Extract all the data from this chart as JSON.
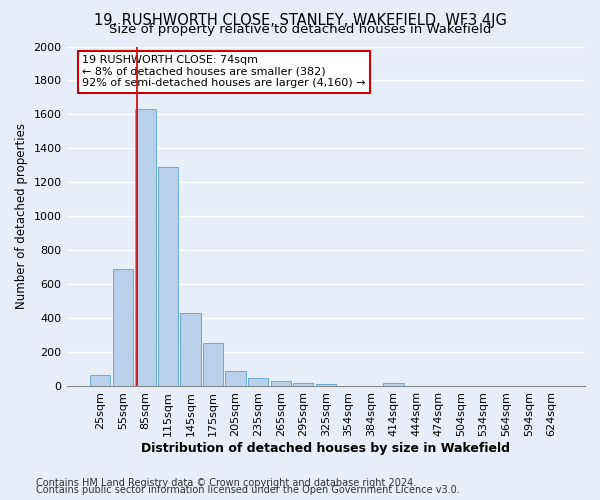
{
  "title": "19, RUSHWORTH CLOSE, STANLEY, WAKEFIELD, WF3 4JG",
  "subtitle": "Size of property relative to detached houses in Wakefield",
  "xlabel": "Distribution of detached houses by size in Wakefield",
  "ylabel": "Number of detached properties",
  "categories": [
    "25sqm",
    "55sqm",
    "85sqm",
    "115sqm",
    "145sqm",
    "175sqm",
    "205sqm",
    "235sqm",
    "265sqm",
    "295sqm",
    "325sqm",
    "354sqm",
    "384sqm",
    "414sqm",
    "444sqm",
    "474sqm",
    "504sqm",
    "534sqm",
    "564sqm",
    "594sqm",
    "624sqm"
  ],
  "values": [
    65,
    690,
    1635,
    1290,
    430,
    255,
    90,
    50,
    30,
    20,
    15,
    0,
    0,
    20,
    0,
    0,
    0,
    0,
    0,
    0,
    0
  ],
  "bar_color": "#b8d0ea",
  "bar_edge_color": "#6aacd4",
  "background_color": "#e8eef8",
  "grid_color": "#ffffff",
  "annotation_text": "19 RUSHWORTH CLOSE: 74sqm\n← 8% of detached houses are smaller (382)\n92% of semi-detached houses are larger (4,160) →",
  "annotation_box_color": "#ffffff",
  "annotation_box_edge": "#cc0000",
  "vline_color": "#cc0000",
  "ylim": [
    0,
    2000
  ],
  "yticks": [
    0,
    200,
    400,
    600,
    800,
    1000,
    1200,
    1400,
    1600,
    1800,
    2000
  ],
  "footnote1": "Contains HM Land Registry data © Crown copyright and database right 2024.",
  "footnote2": "Contains public sector information licensed under the Open Government Licence v3.0.",
  "title_fontsize": 10.5,
  "subtitle_fontsize": 9.5,
  "xlabel_fontsize": 9,
  "ylabel_fontsize": 8.5,
  "tick_fontsize": 8,
  "annotation_fontsize": 8,
  "footnote_fontsize": 7
}
